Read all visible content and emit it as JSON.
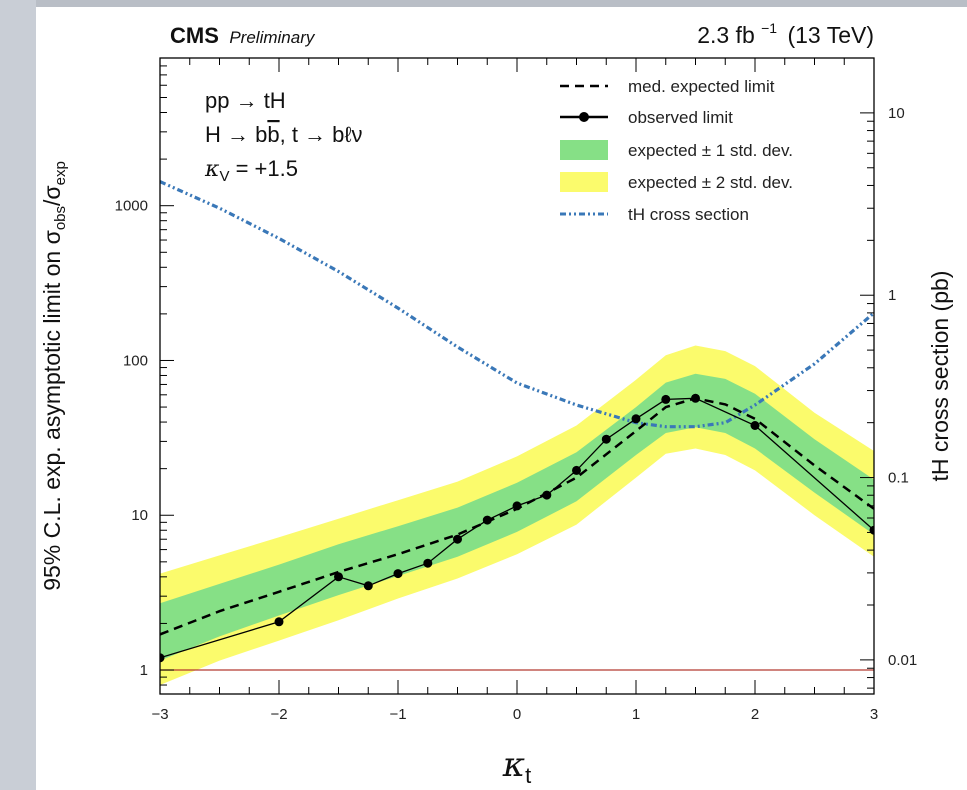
{
  "header": {
    "experiment": "CMS",
    "status": "Preliminary",
    "luminosity": "2.3 fb",
    "lumi_exponent": "−1",
    "energy": "(13 TeV)"
  },
  "process": {
    "line1": "pp → tH",
    "line2_a": "H → b",
    "line2_b": "b",
    "line2_c": ", t → bℓν",
    "line3_sym": "κ",
    "line3_sub": "V",
    "line3_rest": " = +1.5"
  },
  "axes": {
    "ylabel_main": "95% C.L. exp. asymptotic limit on σ",
    "ylabel_sub1": "obs",
    "ylabel_slash": "/σ",
    "ylabel_sub2": "exp",
    "y2label": "tH cross section (pb)",
    "xlabel_sym": "κ",
    "xlabel_sub": "t"
  },
  "colors": {
    "band1": "#86e086",
    "band2": "#fbfb6c",
    "xsec": "#3a78b8",
    "unity": "#b53a30",
    "observed": "#000000"
  },
  "chart_data": {
    "type": "line",
    "x_range": [
      -3,
      3
    ],
    "y_range": [
      0.7,
      9000
    ],
    "y_scale": "log",
    "y2_range": [
      0.0065,
      20
    ],
    "y2_scale": "log",
    "x_ticks": [
      "−3",
      "−2",
      "−1",
      "0",
      "1",
      "2",
      "3"
    ],
    "x_tick_values": [
      -3,
      -2,
      -1,
      0,
      1,
      2,
      3
    ],
    "y_ticks": [
      "1",
      "10",
      "100",
      "1000"
    ],
    "y_tick_values": [
      1,
      10,
      100,
      1000
    ],
    "y2_ticks": [
      "0.01",
      "0.1",
      "1",
      "10"
    ],
    "y2_tick_values": [
      0.01,
      0.1,
      1,
      10
    ],
    "legend": {
      "position": "top-right",
      "entries": [
        {
          "key": "median",
          "label": "med. expected limit"
        },
        {
          "key": "observed",
          "label": "observed limit"
        },
        {
          "key": "band1",
          "label": "expected ± 1 std. dev."
        },
        {
          "key": "band2",
          "label": "expected ± 2 std. dev."
        },
        {
          "key": "xsec",
          "label": "tH cross section"
        }
      ]
    },
    "expected_x": [
      -3,
      -2.5,
      -2,
      -1.5,
      -1,
      -0.5,
      0,
      0.5,
      1,
      1.25,
      1.5,
      1.75,
      2,
      2.5,
      3
    ],
    "expected_median": [
      1.7,
      2.4,
      3.2,
      4.3,
      5.6,
      7.5,
      11,
      17.5,
      35,
      50,
      57,
      52,
      42,
      21,
      11
    ],
    "band1_low": [
      1.15,
      1.65,
      2.25,
      3.05,
      4.05,
      5.4,
      7.8,
      12.3,
      24.5,
      34,
      37,
      34,
      27,
      14,
      7.5
    ],
    "band1_high": [
      2.7,
      3.6,
      4.8,
      6.5,
      8.5,
      11.2,
      16.2,
      25.5,
      50,
      72,
      82,
      76,
      61,
      31,
      17
    ],
    "band2_low": [
      0.8,
      1.15,
      1.55,
      2.1,
      2.9,
      3.9,
      5.6,
      8.7,
      17.5,
      25,
      27,
      24.5,
      19.5,
      10,
      5.4
    ],
    "band2_high": [
      4.2,
      5.5,
      7.2,
      9.5,
      12.5,
      16.5,
      24,
      38,
      75,
      108,
      125,
      115,
      92,
      46,
      26
    ],
    "observed_x": [
      -3,
      -2,
      -1.5,
      -1.25,
      -1,
      -0.75,
      -0.5,
      -0.25,
      0,
      0.25,
      0.5,
      0.75,
      1,
      1.25,
      1.5,
      2,
      3
    ],
    "observed_y": [
      1.2,
      2.05,
      4.0,
      3.5,
      4.2,
      4.9,
      7.0,
      9.3,
      11.5,
      13.5,
      19.5,
      31,
      42,
      56,
      57,
      38,
      8
    ],
    "xsec_x": [
      -3,
      -2.5,
      -2,
      -1.5,
      -1,
      -0.5,
      0,
      0.5,
      1,
      1.25,
      1.5,
      1.75,
      2,
      2.5,
      3
    ],
    "xsec_pb": [
      4.2,
      3.0,
      2.05,
      1.35,
      0.85,
      0.52,
      0.33,
      0.25,
      0.2,
      0.19,
      0.19,
      0.2,
      0.25,
      0.42,
      0.8
    ],
    "unity_line": 1
  }
}
